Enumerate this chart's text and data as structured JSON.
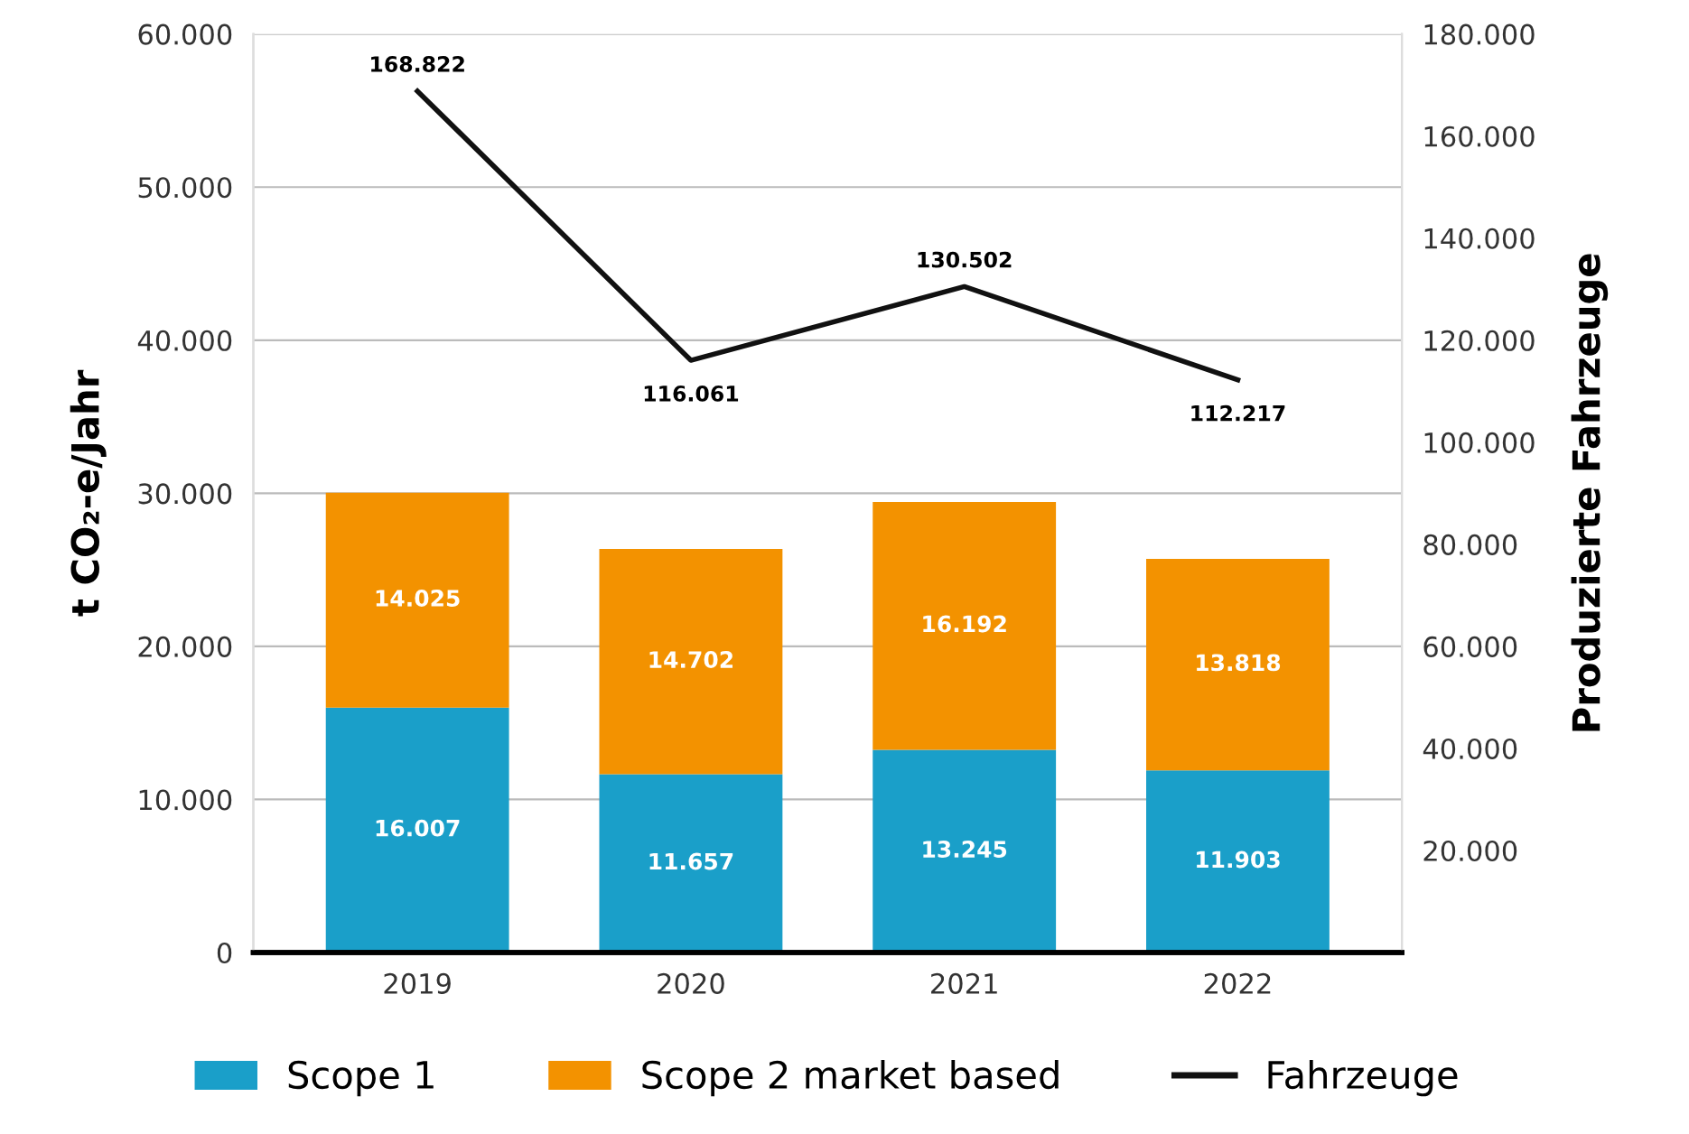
{
  "chart_data": {
    "type": "bar",
    "stacked": true,
    "categories": [
      "2019",
      "2020",
      "2021",
      "2022"
    ],
    "ylabel": "t CO₂-e/Jahr",
    "y2label": "Produzierte Fahrzeuge",
    "ylim": [
      0,
      60000
    ],
    "yticks": [
      {
        "value": 0,
        "label": "0"
      },
      {
        "value": 10000,
        "label": "10.000"
      },
      {
        "value": 20000,
        "label": "20.000"
      },
      {
        "value": 30000,
        "label": "30.000"
      },
      {
        "value": 40000,
        "label": "40.000"
      },
      {
        "value": 50000,
        "label": "50.000"
      },
      {
        "value": 60000,
        "label": "60.000"
      }
    ],
    "y2lim": [
      0,
      180000
    ],
    "y2ticks": [
      {
        "value": 20000,
        "label": "20.000"
      },
      {
        "value": 40000,
        "label": "40.000"
      },
      {
        "value": 60000,
        "label": "60.000"
      },
      {
        "value": 80000,
        "label": "80.000"
      },
      {
        "value": 100000,
        "label": "100.000"
      },
      {
        "value": 120000,
        "label": "120.000"
      },
      {
        "value": 140000,
        "label": "140.000"
      },
      {
        "value": 160000,
        "label": "160.000"
      },
      {
        "value": 180000,
        "label": "180.000"
      }
    ],
    "grid": "y",
    "legend": "bottom",
    "marker": "none",
    "line_style": "solid",
    "series": [
      {
        "name": "Scope 1",
        "color": "#1a9fc9",
        "values": [
          16007,
          11657,
          13245,
          11903
        ],
        "value_labels": [
          "16.007",
          "11.657",
          "13.245",
          "11.903"
        ]
      },
      {
        "name": "Scope 2 market based",
        "color": "#f39200",
        "values": [
          14025,
          14702,
          16192,
          13818
        ],
        "value_labels": [
          "14.025",
          "14.702",
          "16.192",
          "13.818"
        ]
      },
      {
        "name": "Fahrzeuge",
        "type": "line",
        "axis": "y2",
        "color": "#111111",
        "values": [
          168822,
          116061,
          130502,
          112217
        ],
        "value_labels": [
          "168.822",
          "116.061",
          "130.502",
          "112.217"
        ]
      }
    ]
  }
}
